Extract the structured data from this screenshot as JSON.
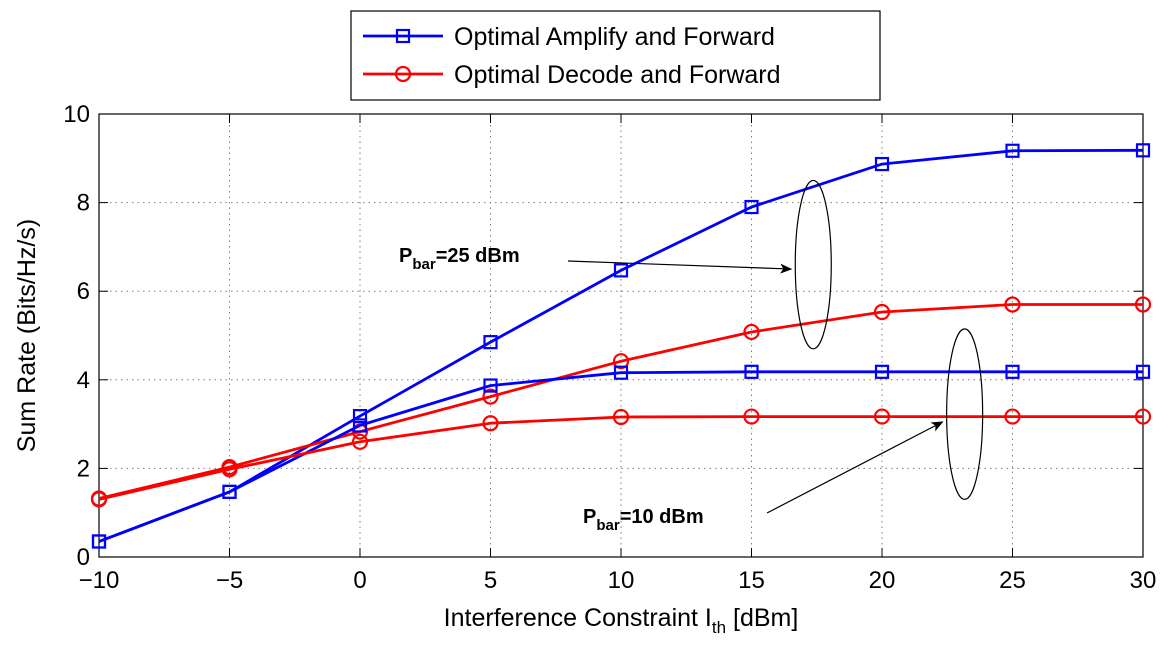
{
  "chart_data": {
    "type": "line",
    "title": "",
    "xlabel": "Interference Constraint I",
    "xlabel_sub": "th",
    "xlabel_unit": " [dBm]",
    "ylabel": "Sum Rate (Bits/Hz/s)",
    "xlim": [
      -10,
      30
    ],
    "ylim": [
      0,
      10
    ],
    "xticks": [
      -10,
      -5,
      0,
      5,
      10,
      15,
      20,
      25,
      30
    ],
    "xtick_labels": [
      "−10",
      "−5",
      "0",
      "5",
      "10",
      "15",
      "20",
      "25",
      "30"
    ],
    "yticks": [
      0,
      2,
      4,
      6,
      8,
      10
    ],
    "ytick_labels": [
      "0",
      "2",
      "4",
      "6",
      "8",
      "10"
    ],
    "grid": true,
    "legend_position": "top-center",
    "legend": [
      {
        "name": "Optimal Amplify and Forward",
        "color": "#0000ff",
        "marker": "square"
      },
      {
        "name": "Optimal Decode and Forward",
        "color": "#ff0000",
        "marker": "circle"
      }
    ],
    "x": [
      -10,
      -5,
      0,
      5,
      10,
      15,
      20,
      25,
      30
    ],
    "series": [
      {
        "group": "Pbar=25 dBm",
        "legend_index": 0,
        "color": "#0000ff",
        "marker": "square",
        "values": [
          0.35,
          1.47,
          3.18,
          4.85,
          6.47,
          7.9,
          8.87,
          9.17,
          9.18
        ]
      },
      {
        "group": "Pbar=25 dBm",
        "legend_index": 1,
        "color": "#ff0000",
        "marker": "circle",
        "values": [
          1.32,
          2.03,
          2.83,
          3.62,
          4.42,
          5.08,
          5.53,
          5.7,
          5.7
        ]
      },
      {
        "group": "Pbar=10 dBm",
        "legend_index": 0,
        "color": "#0000ff",
        "marker": "square",
        "values": [
          0.35,
          1.47,
          2.97,
          3.87,
          4.16,
          4.18,
          4.18,
          4.18,
          4.18
        ]
      },
      {
        "group": "Pbar=10 dBm",
        "legend_index": 1,
        "color": "#ff0000",
        "marker": "circle",
        "values": [
          1.3,
          1.98,
          2.6,
          3.02,
          3.16,
          3.17,
          3.17,
          3.17,
          3.17
        ]
      }
    ],
    "annotations": [
      {
        "label_main": "P",
        "label_sub": "bar",
        "label_rest": "=25 dBm",
        "target_x": 16.6,
        "target_y": 6.5,
        "ellipse_y": [
          4.7,
          8.5
        ]
      },
      {
        "label_main": "P",
        "label_sub": "bar",
        "label_rest": "=10 dBm",
        "target_x": 22.4,
        "target_y": 3.05,
        "ellipse_y": [
          1.3,
          5.15
        ]
      }
    ]
  }
}
